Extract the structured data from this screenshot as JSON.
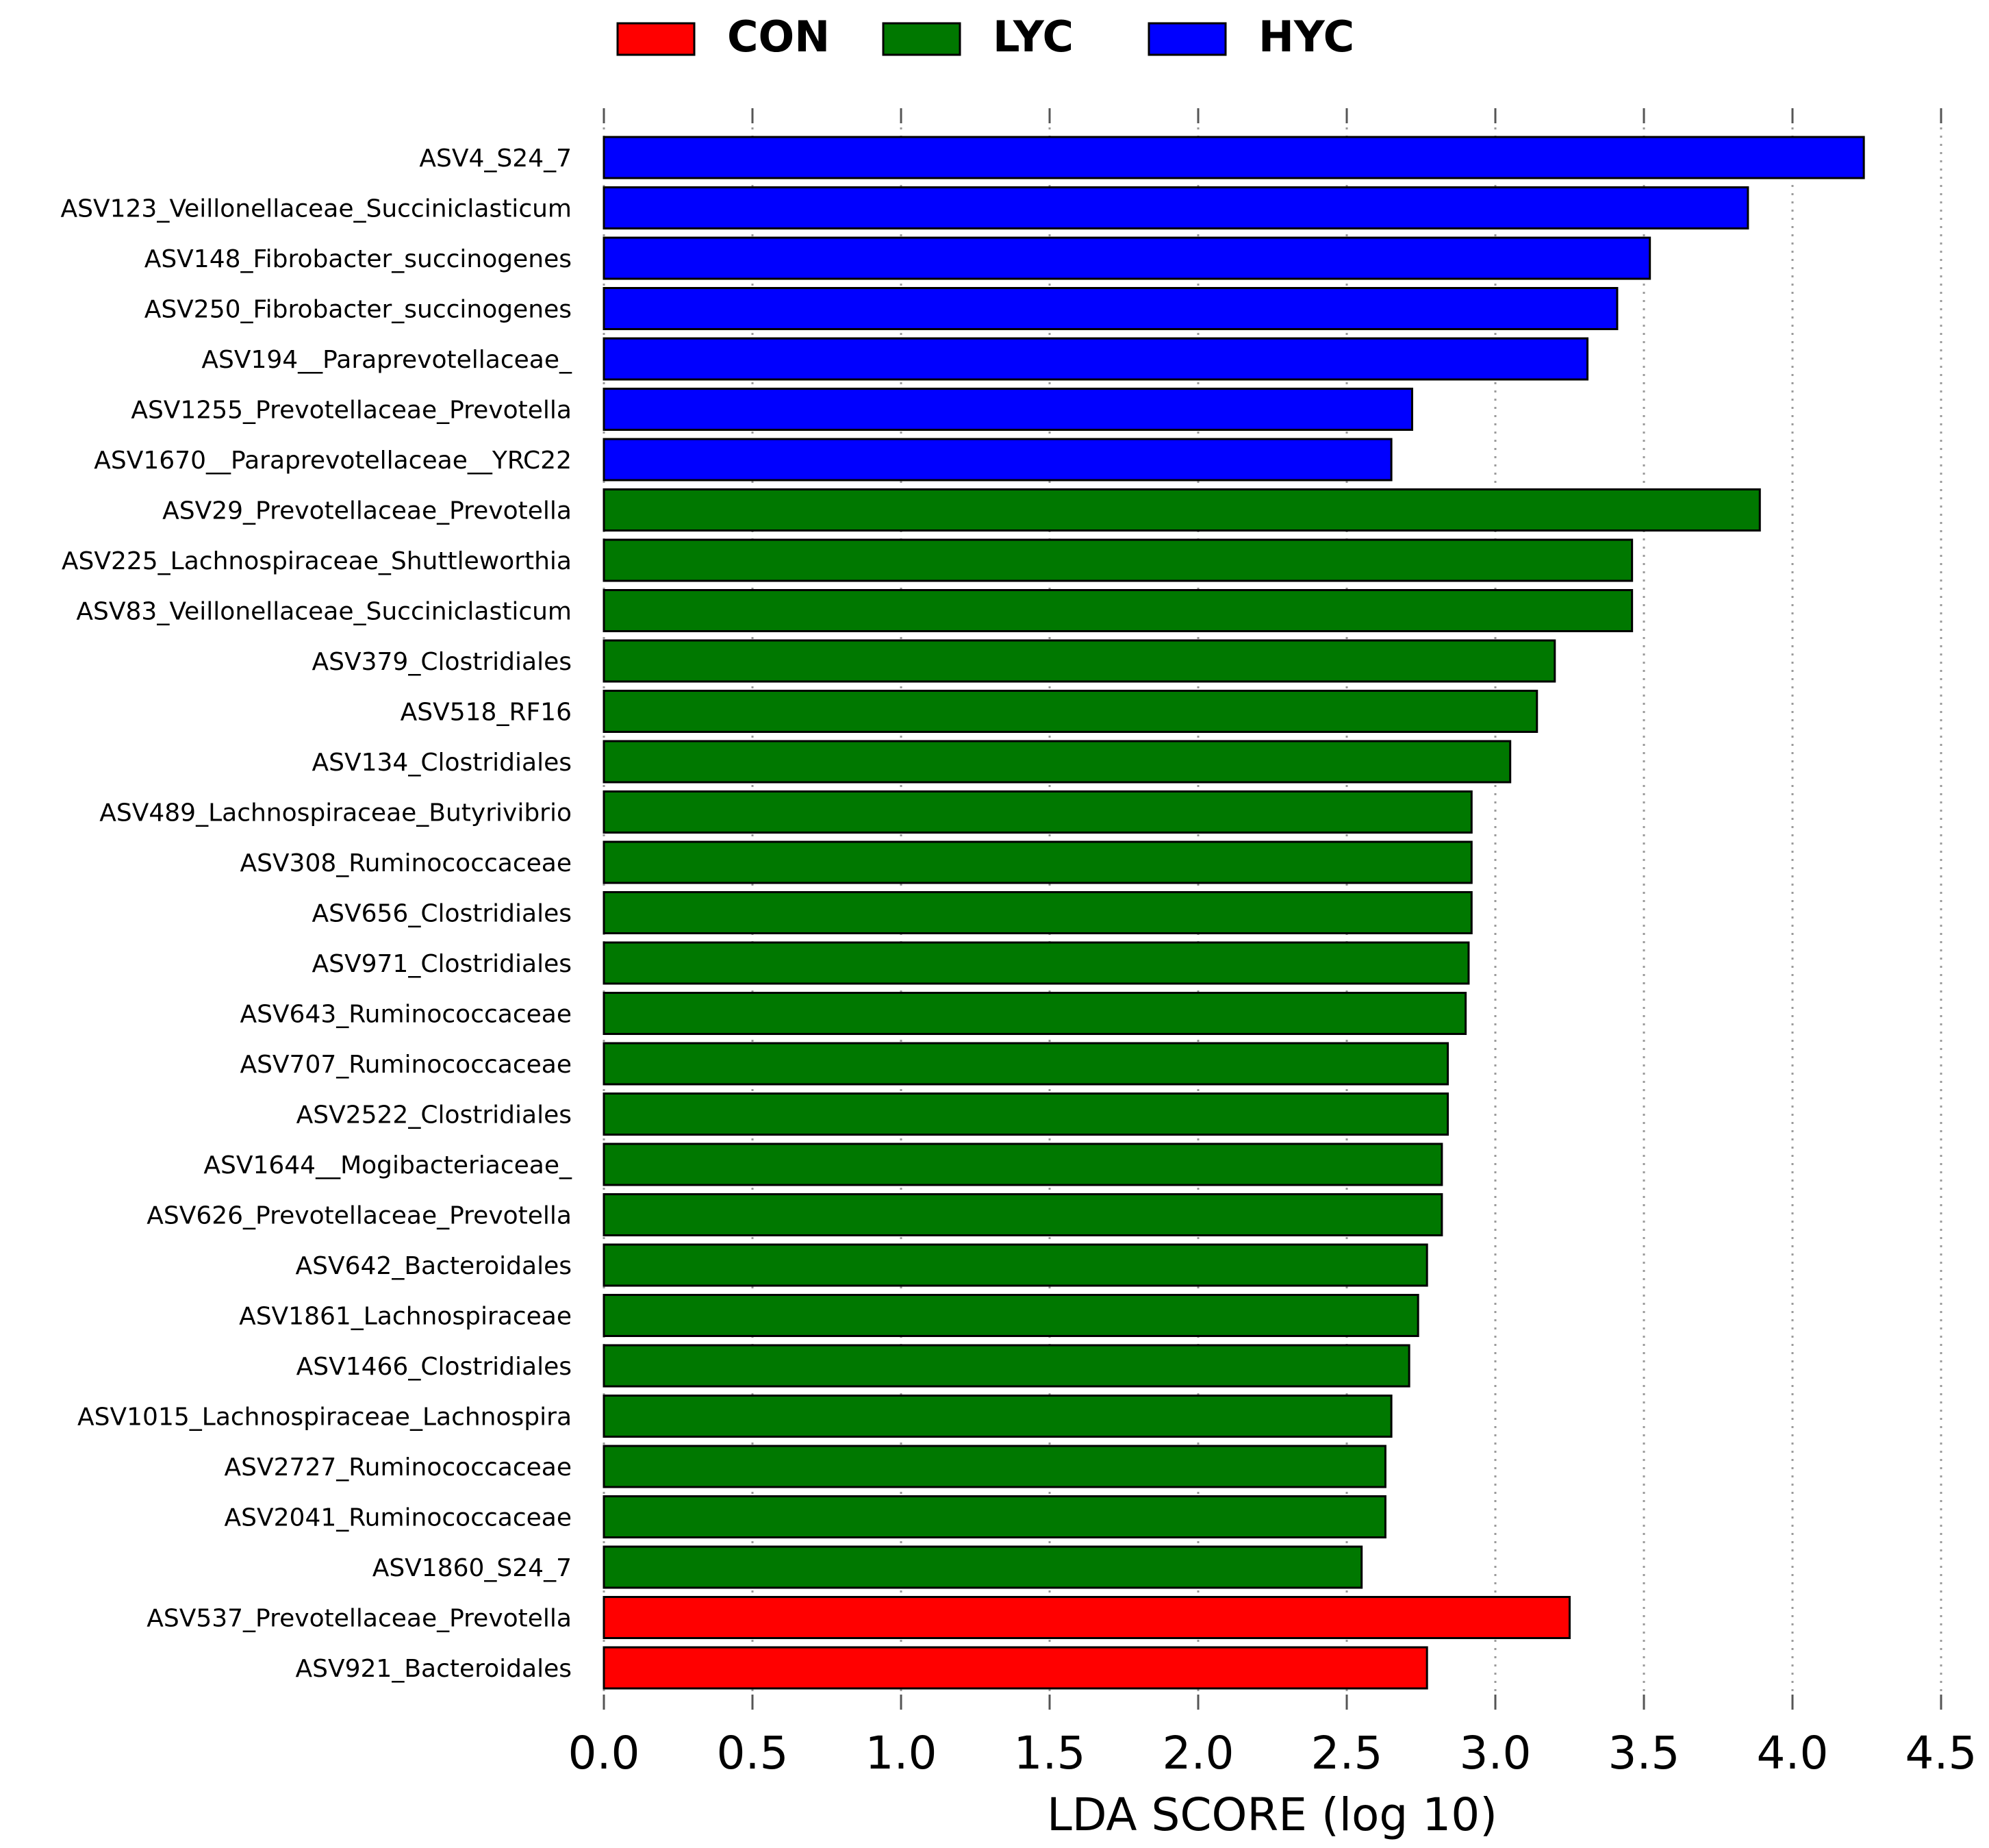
{
  "chart_data": {
    "type": "bar",
    "orientation": "horizontal",
    "title": "",
    "xlabel": "LDA SCORE (log 10)",
    "ylabel": "",
    "xlim": [
      0,
      4.5
    ],
    "xticks": [
      "0.0",
      "0.5",
      "1.0",
      "1.5",
      "2.0",
      "2.5",
      "3.0",
      "3.5",
      "4.0",
      "4.5"
    ],
    "grid": "vertical dotted",
    "legend_position": "top",
    "legend": [
      {
        "name": "CON",
        "color": "#ff0000"
      },
      {
        "name": "LYC",
        "color": "#007800"
      },
      {
        "name": "HYC",
        "color": "#0000ff"
      }
    ],
    "bars": [
      {
        "label": "ASV4_S24_7",
        "value": 4.24,
        "group": "HYC"
      },
      {
        "label": "ASV123_Veillonellaceae_Succiniclasticum",
        "value": 3.85,
        "group": "HYC"
      },
      {
        "label": "ASV148_Fibrobacter_succinogenes",
        "value": 3.52,
        "group": "HYC"
      },
      {
        "label": "ASV250_Fibrobacter_succinogenes",
        "value": 3.41,
        "group": "HYC"
      },
      {
        "label": "ASV194__Paraprevotellaceae_",
        "value": 3.31,
        "group": "HYC"
      },
      {
        "label": "ASV1255_Prevotellaceae_Prevotella",
        "value": 2.72,
        "group": "HYC"
      },
      {
        "label": "ASV1670__Paraprevotellaceae__YRC22",
        "value": 2.65,
        "group": "HYC"
      },
      {
        "label": "ASV29_Prevotellaceae_Prevotella",
        "value": 3.89,
        "group": "LYC"
      },
      {
        "label": "ASV225_Lachnospiraceae_Shuttleworthia",
        "value": 3.46,
        "group": "LYC"
      },
      {
        "label": "ASV83_Veillonellaceae_Succiniclasticum",
        "value": 3.46,
        "group": "LYC"
      },
      {
        "label": "ASV379_Clostridiales",
        "value": 3.2,
        "group": "LYC"
      },
      {
        "label": "ASV518_RF16",
        "value": 3.14,
        "group": "LYC"
      },
      {
        "label": "ASV134_Clostridiales",
        "value": 3.05,
        "group": "LYC"
      },
      {
        "label": "ASV489_Lachnospiraceae_Butyrivibrio",
        "value": 2.92,
        "group": "LYC"
      },
      {
        "label": "ASV308_Ruminococcaceae",
        "value": 2.92,
        "group": "LYC"
      },
      {
        "label": "ASV656_Clostridiales",
        "value": 2.92,
        "group": "LYC"
      },
      {
        "label": "ASV971_Clostridiales",
        "value": 2.91,
        "group": "LYC"
      },
      {
        "label": "ASV643_Ruminococcaceae",
        "value": 2.9,
        "group": "LYC"
      },
      {
        "label": "ASV707_Ruminococcaceae",
        "value": 2.84,
        "group": "LYC"
      },
      {
        "label": "ASV2522_Clostridiales",
        "value": 2.84,
        "group": "LYC"
      },
      {
        "label": "ASV1644__Mogibacteriaceae_",
        "value": 2.82,
        "group": "LYC"
      },
      {
        "label": "ASV626_Prevotellaceae_Prevotella",
        "value": 2.82,
        "group": "LYC"
      },
      {
        "label": "ASV642_Bacteroidales",
        "value": 2.77,
        "group": "LYC"
      },
      {
        "label": "ASV1861_Lachnospiraceae",
        "value": 2.74,
        "group": "LYC"
      },
      {
        "label": "ASV1466_Clostridiales",
        "value": 2.71,
        "group": "LYC"
      },
      {
        "label": "ASV1015_Lachnospiraceae_Lachnospira",
        "value": 2.65,
        "group": "LYC"
      },
      {
        "label": "ASV2727_Ruminococcaceae",
        "value": 2.63,
        "group": "LYC"
      },
      {
        "label": "ASV2041_Ruminococcaceae",
        "value": 2.63,
        "group": "LYC"
      },
      {
        "label": "ASV1860_S24_7",
        "value": 2.55,
        "group": "LYC"
      },
      {
        "label": "ASV537_Prevotellaceae_Prevotella",
        "value": 3.25,
        "group": "CON"
      },
      {
        "label": "ASV921_Bacteroidales",
        "value": 2.77,
        "group": "CON"
      }
    ]
  }
}
